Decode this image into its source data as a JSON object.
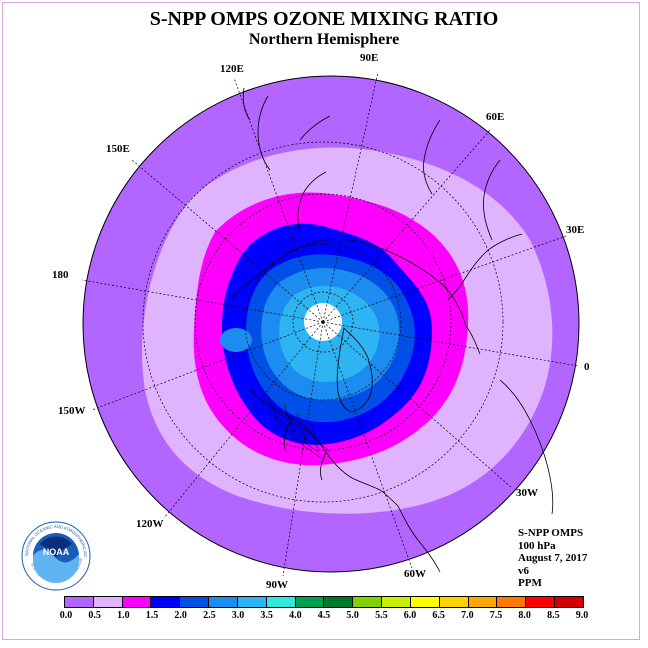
{
  "title": "S-NPP OMPS OZONE MIXING RATIO",
  "subtitle": "Northern Hemisphere",
  "longitude_labels": [
    "90E",
    "60E",
    "30E",
    "0",
    "30W",
    "60W",
    "90W",
    "120W",
    "150W",
    "180",
    "150E",
    "120E"
  ],
  "info": {
    "instrument": "S-NPP OMPS",
    "level": "100 hPa",
    "date": "August 7, 2017",
    "version": "v6",
    "units": "PPM"
  },
  "colorbar": {
    "ticks": [
      "0.0",
      "0.5",
      "1.0",
      "1.5",
      "2.0",
      "2.5",
      "3.0",
      "3.5",
      "4.0",
      "4.5",
      "5.0",
      "5.5",
      "6.0",
      "6.5",
      "7.0",
      "7.5",
      "8.0",
      "8.5",
      "9.0"
    ],
    "colors": [
      "#b266ff",
      "#e0b3ff",
      "#ff00ff",
      "#0000ff",
      "#0050e8",
      "#1c8cf0",
      "#2eb4f2",
      "#30e8e0",
      "#00a050",
      "#00782c",
      "#80d200",
      "#c8f000",
      "#ffff00",
      "#ffd200",
      "#ffa800",
      "#ff7800",
      "#ff0000",
      "#d20000"
    ]
  },
  "logo": {
    "text": "NOAA",
    "ring_text_top": "NATIONAL OCEANIC AND ATMOSPHERIC ADMINISTRATION",
    "ring_text_bottom": "U.S. DEPARTMENT OF COMMERCE"
  }
}
